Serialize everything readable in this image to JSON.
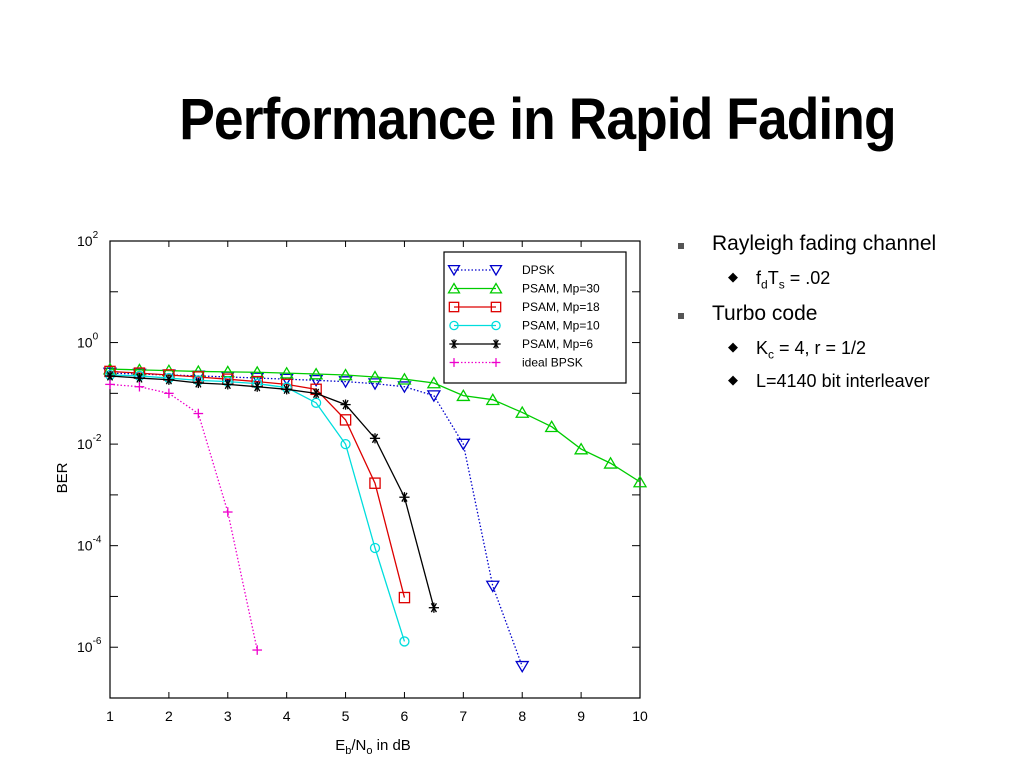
{
  "title": "Performance in Rapid Fading",
  "bullets": {
    "item1": "Rayleigh fading channel",
    "item1_sub1": {
      "base1": "f",
      "sub1": "d",
      "base2": "T",
      "sub2": "s",
      "rest": " = .02"
    },
    "item2": "Turbo code",
    "item2_sub1": {
      "base": "K",
      "sub": "c",
      "rest": " = 4, r = 1/2"
    },
    "item2_sub2": "L=4140 bit interleaver",
    "square_marker": "■",
    "diamond_marker": "◆"
  },
  "chart_data": {
    "type": "line",
    "title": "",
    "xlabel": {
      "base1": "E",
      "sub1": "b",
      "mid": "/N",
      "sub2": "o",
      "rest": " in dB"
    },
    "ylabel": "BER",
    "xlim": [
      1,
      10
    ],
    "ylim_log10": [
      -7,
      2
    ],
    "y_scale": "log",
    "x_ticks": [
      1,
      2,
      3,
      4,
      5,
      6,
      7,
      8,
      9,
      10
    ],
    "y_ticks": [
      {
        "base": "10",
        "exp": "2"
      },
      {
        "base": "10",
        "exp": "0"
      },
      {
        "base": "10",
        "exp": "-2"
      },
      {
        "base": "10",
        "exp": "-4"
      },
      {
        "base": "10",
        "exp": "-6"
      }
    ],
    "legend_position": "top-right",
    "series": [
      {
        "name": "DPSK",
        "color": "#0000cc",
        "dash": "dotted",
        "marker": "triangle-down",
        "x": [
          1,
          1.5,
          2,
          2.5,
          3,
          3.5,
          4,
          4.5,
          5,
          5.5,
          6,
          6.5,
          7,
          7.5,
          8
        ],
        "y": [
          0.25,
          0.24,
          0.23,
          0.22,
          0.21,
          0.2,
          0.19,
          0.18,
          0.17,
          0.155,
          0.135,
          0.09,
          0.01,
          1.6e-05,
          4.2e-07
        ]
      },
      {
        "name": "PSAM, Mp=30",
        "color": "#00cc00",
        "dash": "solid",
        "marker": "triangle-up",
        "x": [
          1,
          1.5,
          2,
          2.5,
          3,
          3.5,
          4,
          4.5,
          5,
          5.5,
          6,
          6.5,
          7,
          7.5,
          8,
          8.5,
          9,
          9.5,
          10
        ],
        "y": [
          0.3,
          0.29,
          0.28,
          0.27,
          0.265,
          0.26,
          0.25,
          0.24,
          0.23,
          0.21,
          0.19,
          0.16,
          0.09,
          0.075,
          0.042,
          0.022,
          0.008,
          0.0042,
          0.0018
        ]
      },
      {
        "name": "PSAM, Mp=18",
        "color": "#dd0000",
        "dash": "solid",
        "marker": "square",
        "x": [
          1,
          1.5,
          2,
          2.5,
          3,
          3.5,
          4,
          4.5,
          5,
          5.5,
          6
        ],
        "y": [
          0.27,
          0.25,
          0.23,
          0.21,
          0.19,
          0.17,
          0.15,
          0.12,
          0.03,
          0.0017,
          9.5e-06
        ]
      },
      {
        "name": "PSAM, Mp=10",
        "color": "#00dddd",
        "dash": "solid",
        "marker": "circle",
        "x": [
          1,
          1.5,
          2,
          2.5,
          3,
          3.5,
          4,
          4.5,
          5,
          5.5,
          6
        ],
        "y": [
          0.23,
          0.22,
          0.2,
          0.18,
          0.17,
          0.155,
          0.13,
          0.065,
          0.01,
          9e-05,
          1.3e-06
        ]
      },
      {
        "name": "PSAM, Mp=6",
        "color": "#000000",
        "dash": "solid",
        "marker": "star",
        "x": [
          1,
          1.5,
          2,
          2.5,
          3,
          3.5,
          4,
          4.5,
          5,
          5.5,
          6,
          6.5
        ],
        "y": [
          0.22,
          0.2,
          0.185,
          0.16,
          0.15,
          0.135,
          0.12,
          0.1,
          0.06,
          0.013,
          0.0009,
          6e-06
        ]
      },
      {
        "name": "ideal BPSK",
        "color": "#ee00cc",
        "dash": "dotted",
        "marker": "plus",
        "x": [
          1,
          1.5,
          2,
          2.5,
          3,
          3.5
        ],
        "y": [
          0.15,
          0.135,
          0.1,
          0.04,
          0.00046,
          8.8e-07
        ]
      }
    ]
  }
}
